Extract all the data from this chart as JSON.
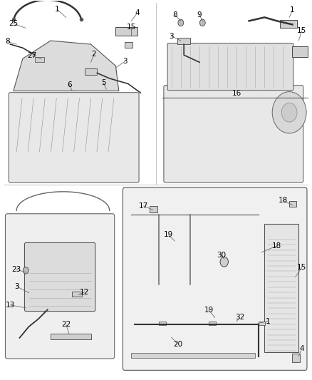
{
  "background_color": "#ffffff",
  "fig_width": 4.38,
  "fig_height": 5.33,
  "dpi": 100,
  "line_color": "#000000",
  "label_fontsize": 7.5,
  "label_color": "#000000",
  "separator_color": "#cccccc",
  "engine_color": "#eeeeee",
  "hose_color": "#333333",
  "fitting_color": "#d0d0d0",
  "fin_color": "#aaaaaa"
}
